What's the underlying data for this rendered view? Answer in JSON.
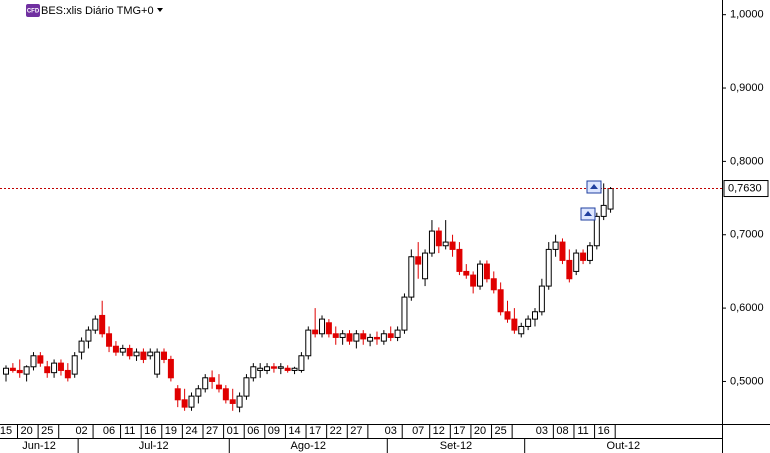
{
  "chart_data": {
    "type": "candlestick",
    "title": "BES:xlis Diário TMG+0",
    "badge": "CFD",
    "up_color": "#ffffff",
    "down_color": "#e00000",
    "ylim": [
      0.442,
      1.02
    ],
    "yticks": [
      {
        "value": 0.5,
        "label": "0,5000"
      },
      {
        "value": 0.6,
        "label": "0,6000"
      },
      {
        "value": 0.7,
        "label": "0,7000"
      },
      {
        "value": 0.8,
        "label": "0,8000"
      },
      {
        "value": 0.9,
        "label": "0,9000"
      },
      {
        "value": 1.0,
        "label": "1,0000"
      }
    ],
    "last_price": {
      "value": 0.763,
      "label": "0,7630"
    },
    "categories": [
      "15",
      null,
      null,
      "20",
      null,
      null,
      "25",
      null,
      null,
      null,
      null,
      "02",
      null,
      null,
      null,
      "06",
      null,
      null,
      "11",
      null,
      null,
      "16",
      null,
      null,
      "19",
      null,
      null,
      "24",
      null,
      null,
      "27",
      null,
      null,
      "01",
      null,
      null,
      "06",
      null,
      null,
      "09",
      null,
      null,
      "14",
      null,
      null,
      "17",
      null,
      null,
      "22",
      null,
      null,
      "27",
      null,
      null,
      null,
      null,
      "03",
      null,
      null,
      null,
      "07",
      null,
      null,
      "12",
      null,
      null,
      "17",
      null,
      null,
      "20",
      null,
      null,
      "25",
      null,
      null,
      null,
      null,
      null,
      "03",
      null,
      null,
      "08",
      null,
      null,
      "11",
      null,
      null,
      "16",
      null
    ],
    "months": [
      "Jun-12",
      "Jul-12",
      "Ago-12",
      "Set-12",
      "Out-12"
    ],
    "open": [
      0.51,
      0.518,
      0.515,
      0.51,
      0.52,
      0.535,
      0.52,
      0.512,
      0.525,
      0.515,
      0.51,
      0.54,
      0.555,
      0.57,
      0.59,
      0.565,
      0.548,
      0.54,
      0.545,
      0.535,
      0.54,
      0.535,
      0.51,
      0.54,
      0.53,
      0.49,
      0.475,
      0.465,
      0.48,
      0.49,
      0.505,
      0.495,
      0.49,
      0.475,
      0.465,
      0.48,
      0.505,
      0.515,
      0.515,
      0.52,
      0.518,
      0.518,
      0.515,
      0.515,
      0.535,
      0.57,
      0.565,
      0.58,
      0.565,
      0.56,
      0.565,
      0.555,
      0.565,
      0.555,
      0.56,
      0.555,
      0.565,
      0.56,
      0.57,
      0.615,
      0.67,
      0.64,
      0.675,
      0.705,
      0.685,
      0.69,
      0.68,
      0.65,
      0.645,
      0.63,
      0.66,
      0.64,
      0.625,
      0.595,
      0.585,
      0.565,
      0.575,
      0.585,
      0.595,
      0.63,
      0.68,
      0.69,
      0.665,
      0.65,
      0.675,
      0.665,
      0.685,
      0.725,
      0.735
    ],
    "high": [
      0.522,
      0.525,
      0.53,
      0.522,
      0.54,
      0.54,
      0.528,
      0.53,
      0.53,
      0.525,
      0.54,
      0.56,
      0.575,
      0.59,
      0.61,
      0.575,
      0.555,
      0.55,
      0.55,
      0.545,
      0.545,
      0.545,
      0.545,
      0.545,
      0.535,
      0.495,
      0.49,
      0.485,
      0.495,
      0.51,
      0.515,
      0.51,
      0.495,
      0.49,
      0.485,
      0.51,
      0.525,
      0.525,
      0.525,
      0.525,
      0.525,
      0.522,
      0.52,
      0.54,
      0.575,
      0.6,
      0.59,
      0.585,
      0.575,
      0.57,
      0.57,
      0.57,
      0.57,
      0.565,
      0.568,
      0.57,
      0.575,
      0.575,
      0.62,
      0.68,
      0.69,
      0.68,
      0.72,
      0.71,
      0.72,
      0.7,
      0.69,
      0.66,
      0.65,
      0.665,
      0.665,
      0.65,
      0.635,
      0.61,
      0.6,
      0.58,
      0.59,
      0.6,
      0.64,
      0.69,
      0.7,
      0.695,
      0.68,
      0.68,
      0.68,
      0.69,
      0.73,
      0.77,
      0.765
    ],
    "low": [
      0.5,
      0.512,
      0.505,
      0.5,
      0.515,
      0.52,
      0.505,
      0.505,
      0.508,
      0.5,
      0.505,
      0.53,
      0.545,
      0.565,
      0.56,
      0.54,
      0.535,
      0.535,
      0.53,
      0.528,
      0.525,
      0.53,
      0.505,
      0.525,
      0.5,
      0.465,
      0.46,
      0.46,
      0.47,
      0.485,
      0.49,
      0.485,
      0.47,
      0.46,
      0.458,
      0.475,
      0.5,
      0.505,
      0.51,
      0.512,
      0.51,
      0.512,
      0.51,
      0.512,
      0.53,
      0.56,
      0.56,
      0.56,
      0.55,
      0.55,
      0.55,
      0.545,
      0.55,
      0.548,
      0.55,
      0.55,
      0.555,
      0.555,
      0.565,
      0.61,
      0.64,
      0.63,
      0.67,
      0.675,
      0.68,
      0.67,
      0.645,
      0.64,
      0.62,
      0.625,
      0.635,
      0.62,
      0.59,
      0.58,
      0.565,
      0.56,
      0.57,
      0.575,
      0.59,
      0.625,
      0.67,
      0.66,
      0.635,
      0.645,
      0.66,
      0.66,
      0.68,
      0.72,
      0.73
    ],
    "close": [
      0.518,
      0.515,
      0.512,
      0.52,
      0.535,
      0.525,
      0.512,
      0.525,
      0.515,
      0.505,
      0.535,
      0.555,
      0.57,
      0.585,
      0.565,
      0.548,
      0.54,
      0.545,
      0.535,
      0.54,
      0.53,
      0.54,
      0.54,
      0.53,
      0.505,
      0.475,
      0.465,
      0.48,
      0.49,
      0.505,
      0.5,
      0.49,
      0.475,
      0.47,
      0.48,
      0.505,
      0.52,
      0.518,
      0.52,
      0.518,
      0.52,
      0.515,
      0.518,
      0.535,
      0.57,
      0.565,
      0.585,
      0.565,
      0.56,
      0.565,
      0.555,
      0.565,
      0.558,
      0.56,
      0.558,
      0.565,
      0.56,
      0.57,
      0.615,
      0.67,
      0.66,
      0.675,
      0.705,
      0.685,
      0.69,
      0.68,
      0.65,
      0.645,
      0.63,
      0.66,
      0.64,
      0.625,
      0.595,
      0.585,
      0.57,
      0.575,
      0.585,
      0.595,
      0.63,
      0.68,
      0.69,
      0.665,
      0.64,
      0.675,
      0.665,
      0.685,
      0.725,
      0.74,
      0.763
    ]
  }
}
